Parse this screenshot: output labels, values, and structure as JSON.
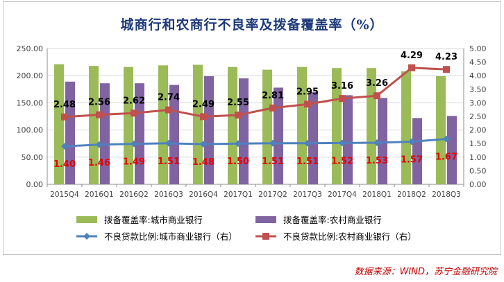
{
  "chart_data": {
    "type": "bar+line",
    "title": "城商行和农商行不良率及拨备覆盖率（%）",
    "categories": [
      "2015Q4",
      "2016Q1",
      "2016Q2",
      "2016Q3",
      "2016Q4",
      "2017Q1",
      "2017Q2",
      "2017Q3",
      "2017Q4",
      "2018Q1",
      "2018Q2",
      "2018Q3"
    ],
    "y_left": {
      "ticks": [
        "0.00",
        "50.00",
        "100.00",
        "150.00",
        "200.00",
        "250.00"
      ],
      "ylim": [
        0,
        250
      ]
    },
    "y_right": {
      "ticks": [
        "0.00",
        "0.50",
        "1.00",
        "1.50",
        "2.00",
        "2.50",
        "3.00",
        "3.50",
        "4.00",
        "4.50",
        "5.00"
      ],
      "ylim": [
        0,
        5
      ]
    },
    "bar_series": [
      {
        "name": "拨备覆盖率:城市商业银行",
        "color": "#9bbb59",
        "axis": "left",
        "values": [
          221,
          218,
          216,
          219,
          220,
          216,
          211,
          216,
          214,
          214,
          208,
          199
        ]
      },
      {
        "name": "拨备覆盖率:农村商业银行",
        "color": "#8064a2",
        "axis": "left",
        "values": [
          189,
          186,
          186,
          183,
          199,
          195,
          178,
          170,
          164,
          159,
          122,
          126
        ]
      }
    ],
    "line_series": [
      {
        "name": "不良贷款比例:城市商业银行（右）",
        "color": "#4f81bd",
        "marker": "diamond",
        "axis": "right",
        "values": [
          1.4,
          1.46,
          1.49,
          1.51,
          1.48,
          1.5,
          1.51,
          1.51,
          1.52,
          1.53,
          1.57,
          1.67
        ],
        "labels": [
          "1.40",
          "1.46",
          "1.49",
          "1.51",
          "1.48",
          "1.50",
          "1.51",
          "1.51",
          "1.52",
          "1.53",
          "1.57",
          "1.67"
        ],
        "label_color": "#e60000"
      },
      {
        "name": "不良贷款比例:农村商业银行（右）",
        "color": "#c0504d",
        "marker": "square",
        "axis": "right",
        "values": [
          2.48,
          2.56,
          2.62,
          2.74,
          2.49,
          2.55,
          2.81,
          2.95,
          3.16,
          3.26,
          4.29,
          4.23
        ],
        "labels": [
          "2.48",
          "2.56",
          "2.62",
          "2.74",
          "2.49",
          "2.55",
          "2.81",
          "2.95",
          "3.16",
          "3.26",
          "4.29",
          "4.23"
        ],
        "label_color": "#000000"
      }
    ],
    "grid": true,
    "legend": "bottom"
  },
  "source": "数据来源：WIND，苏宁金融研究院"
}
